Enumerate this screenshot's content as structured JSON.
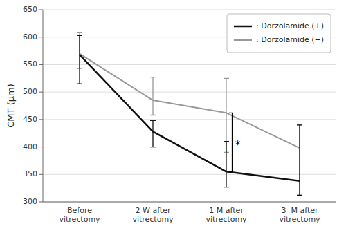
{
  "chart_data": {
    "type": "line",
    "categories": [
      "Before\nvitrectomy",
      "2 W after\nvitrectomy",
      "1 M after\nvitrectomy",
      "3  M after\nvitrectomy"
    ],
    "series": [
      {
        "name": ": Dorzolamide (+)",
        "color": "#111111",
        "values": [
          568,
          428,
          355,
          338
        ],
        "upper": [
          603,
          448,
          410,
          440
        ],
        "lower": [
          515,
          400,
          327,
          312
        ]
      },
      {
        "name": ": Dorzolamide (−)",
        "color": "#999999",
        "values": [
          570,
          485,
          462,
          398
        ],
        "upper": [
          608,
          527,
          525,
          440
        ],
        "lower": [
          543,
          458,
          390,
          312
        ]
      }
    ],
    "ylabel": "CMT (μm)",
    "ylim": [
      300,
      650
    ],
    "yticks": [
      300,
      350,
      400,
      450,
      500,
      550,
      600,
      650
    ],
    "grid": true,
    "legend": "upper right",
    "annotations": [
      {
        "text": "*",
        "category": "1 M after\nvitrectomy"
      }
    ]
  }
}
